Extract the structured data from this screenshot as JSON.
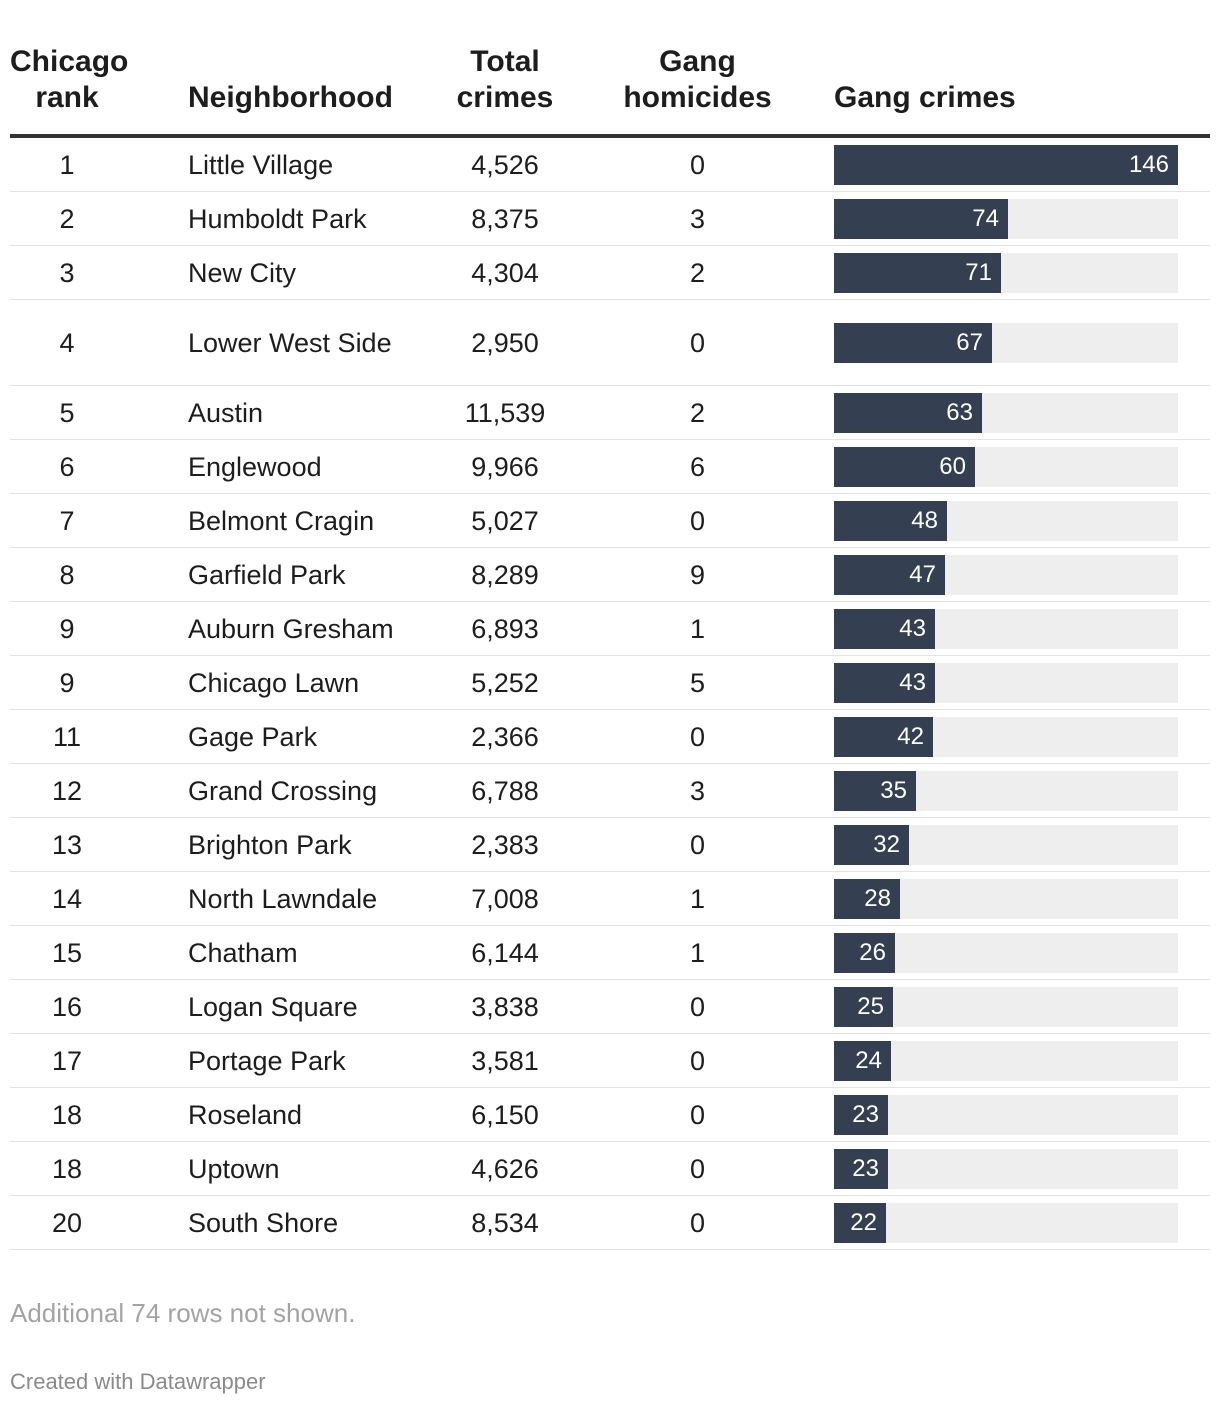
{
  "chart_data": {
    "type": "table",
    "columns": {
      "rank": "Chicago\nrank",
      "neighborhood": "Neighborhood",
      "total": "Total\ncrimes",
      "homicides": "Gang\nhomicides",
      "gang": "Gang crimes"
    },
    "bar_max": 146,
    "rows": [
      {
        "rank": "1",
        "neighborhood": "Little Village",
        "total": "4,526",
        "homicides": "0",
        "gang": 146
      },
      {
        "rank": "2",
        "neighborhood": "Humboldt Park",
        "total": "8,375",
        "homicides": "3",
        "gang": 74
      },
      {
        "rank": "3",
        "neighborhood": "New City",
        "total": "4,304",
        "homicides": "2",
        "gang": 71
      },
      {
        "rank": "4",
        "neighborhood": "Lower West Side",
        "total": "2,950",
        "homicides": "0",
        "gang": 67
      },
      {
        "rank": "5",
        "neighborhood": "Austin",
        "total": "11,539",
        "homicides": "2",
        "gang": 63
      },
      {
        "rank": "6",
        "neighborhood": "Englewood",
        "total": "9,966",
        "homicides": "6",
        "gang": 60
      },
      {
        "rank": "7",
        "neighborhood": "Belmont Cragin",
        "total": "5,027",
        "homicides": "0",
        "gang": 48
      },
      {
        "rank": "8",
        "neighborhood": "Garfield Park",
        "total": "8,289",
        "homicides": "9",
        "gang": 47
      },
      {
        "rank": "9",
        "neighborhood": "Auburn Gresham",
        "total": "6,893",
        "homicides": "1",
        "gang": 43
      },
      {
        "rank": "9",
        "neighborhood": "Chicago Lawn",
        "total": "5,252",
        "homicides": "5",
        "gang": 43
      },
      {
        "rank": "11",
        "neighborhood": "Gage Park",
        "total": "2,366",
        "homicides": "0",
        "gang": 42
      },
      {
        "rank": "12",
        "neighborhood": "Grand Crossing",
        "total": "6,788",
        "homicides": "3",
        "gang": 35
      },
      {
        "rank": "13",
        "neighborhood": "Brighton Park",
        "total": "2,383",
        "homicides": "0",
        "gang": 32
      },
      {
        "rank": "14",
        "neighborhood": "North Lawndale",
        "total": "7,008",
        "homicides": "1",
        "gang": 28
      },
      {
        "rank": "15",
        "neighborhood": "Chatham",
        "total": "6,144",
        "homicides": "1",
        "gang": 26
      },
      {
        "rank": "16",
        "neighborhood": "Logan Square",
        "total": "3,838",
        "homicides": "0",
        "gang": 25
      },
      {
        "rank": "17",
        "neighborhood": "Portage Park",
        "total": "3,581",
        "homicides": "0",
        "gang": 24
      },
      {
        "rank": "18",
        "neighborhood": "Roseland",
        "total": "6,150",
        "homicides": "0",
        "gang": 23
      },
      {
        "rank": "18",
        "neighborhood": "Uptown",
        "total": "4,626",
        "homicides": "0",
        "gang": 23
      },
      {
        "rank": "20",
        "neighborhood": "South Shore",
        "total": "8,534",
        "homicides": "0",
        "gang": 22
      }
    ]
  },
  "footer": {
    "note": "Additional 74 rows not shown.",
    "credit": "Created with Datawrapper"
  },
  "colors": {
    "bar": "#343f52",
    "bar_track": "#eeeeee"
  }
}
